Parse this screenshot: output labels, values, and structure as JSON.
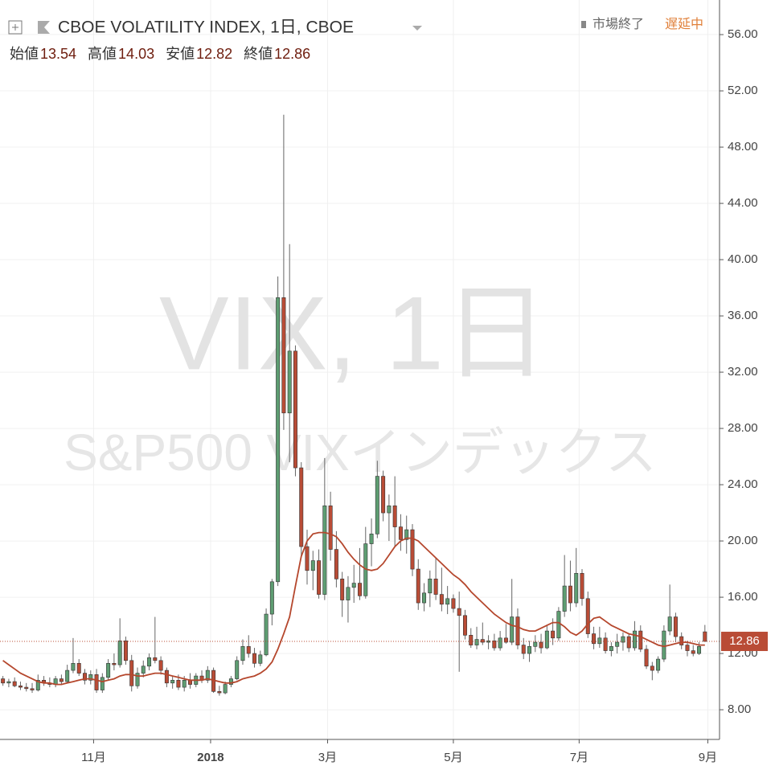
{
  "chart_data": {
    "type": "candlestick",
    "title": "CBOE VOLATILITY INDEX, 1日, CBOE",
    "ohlc": [
      {
        "label": "始値",
        "value": 13.54
      },
      {
        "label": "高値",
        "value": 14.03
      },
      {
        "label": "安値",
        "value": 12.82
      },
      {
        "label": "終値",
        "value": 12.86
      }
    ],
    "status": "市場終了",
    "delay": "遅延中",
    "watermark": [
      "VIX, 1日",
      "S&P500 VIXインデックス"
    ],
    "up_color": "#5e9d72",
    "down_color": "#b94c36",
    "grid": true,
    "xlim": [
      -1,
      245
    ],
    "ylim": [
      5.89,
      58.46
    ],
    "xticks": [
      {
        "value": 31,
        "label": "11月"
      },
      {
        "value": 71,
        "label": "2018"
      },
      {
        "value": 111,
        "label": "3月"
      },
      {
        "value": 154,
        "label": "5月"
      },
      {
        "value": 197,
        "label": "7月"
      },
      {
        "value": 241,
        "label": "9月"
      }
    ],
    "yticks": [
      {
        "value": 8,
        "label": "8.00"
      },
      {
        "value": 12,
        "label": "12.00"
      },
      {
        "value": 16,
        "label": "16.00"
      },
      {
        "value": 20,
        "label": "20.00"
      },
      {
        "value": 24,
        "label": "24.00"
      },
      {
        "value": 28,
        "label": "28.00"
      },
      {
        "value": 32,
        "label": "32.00"
      },
      {
        "value": 36,
        "label": "36.00"
      },
      {
        "value": 40,
        "label": "40.00"
      },
      {
        "value": 44,
        "label": "44.00"
      },
      {
        "value": 48,
        "label": "48.00"
      },
      {
        "value": 52,
        "label": "52.00"
      },
      {
        "value": 56,
        "label": "56.00"
      }
    ],
    "x": [
      0,
      2,
      4,
      6,
      8,
      10,
      12,
      14,
      16,
      18,
      20,
      22,
      24,
      26,
      28,
      30,
      32,
      34,
      36,
      38,
      40,
      42,
      44,
      46,
      48,
      50,
      52,
      54,
      56,
      58,
      60,
      62,
      64,
      66,
      68,
      70,
      72,
      74,
      76,
      78,
      80,
      82,
      84,
      86,
      88,
      90,
      92,
      94,
      96,
      98,
      100,
      102,
      104,
      106,
      108,
      110,
      112,
      114,
      116,
      118,
      120,
      122,
      124,
      126,
      128,
      130,
      132,
      134,
      136,
      138,
      140,
      142,
      144,
      146,
      148,
      150,
      152,
      154,
      156,
      158,
      160,
      162,
      164,
      166,
      168,
      170,
      172,
      174,
      176,
      178,
      180,
      182,
      184,
      186,
      188,
      190,
      192,
      194,
      196,
      198,
      200,
      202,
      204,
      206,
      208,
      210,
      212,
      214,
      216,
      218,
      220,
      222,
      224,
      226,
      228,
      230,
      232,
      234,
      236,
      238,
      240
    ],
    "open": [
      10.2,
      9.9,
      10.0,
      9.7,
      9.6,
      9.5,
      9.4,
      10.1,
      9.9,
      9.8,
      10.2,
      10.0,
      10.8,
      11.3,
      10.6,
      10.1,
      10.5,
      9.4,
      10.3,
      11.3,
      11.2,
      12.9,
      11.5,
      9.7,
      10.6,
      11.1,
      11.7,
      11.5,
      10.8,
      9.9,
      10.1,
      9.6,
      10.1,
      9.8,
      10.4,
      10.1,
      10.8,
      9.3,
      9.2,
      9.8,
      10.2,
      11.5,
      12.5,
      12.0,
      11.3,
      11.9,
      14.8,
      17.1,
      37.3,
      29.1,
      33.5,
      25.2,
      19.6,
      17.9,
      18.6,
      16.2,
      22.5,
      19.4,
      17.3,
      15.8,
      16.7,
      17.0,
      16.1,
      19.8,
      20.5,
      24.6,
      22.0,
      22.5,
      21.0,
      20.1,
      20.8,
      18.0,
      15.6,
      16.3,
      17.3,
      16.2,
      15.5,
      15.9,
      15.2,
      14.7,
      13.3,
      12.6,
      13.0,
      12.8,
      12.9,
      12.4,
      13.1,
      12.8,
      14.6,
      12.6,
      12.0,
      12.5,
      12.8,
      12.4,
      13.6,
      13.1,
      15.0,
      16.8,
      15.6,
      17.7,
      15.9,
      13.4,
      12.7,
      13.1,
      12.2,
      12.5,
      12.8,
      13.2,
      12.4,
      13.6,
      12.3,
      11.1,
      10.8,
      11.6,
      13.6,
      14.6,
      13.2,
      12.6,
      12.2,
      12.0,
      13.54
    ],
    "high": [
      10.4,
      10.2,
      10.3,
      10.0,
      9.9,
      9.9,
      10.5,
      10.4,
      10.3,
      10.4,
      10.5,
      11.2,
      13.1,
      11.6,
      10.9,
      10.8,
      10.9,
      10.6,
      11.6,
      12.0,
      14.5,
      13.2,
      11.9,
      11.0,
      11.5,
      12.0,
      14.6,
      11.8,
      11.0,
      10.4,
      10.5,
      10.4,
      10.6,
      10.6,
      10.8,
      11.1,
      11.0,
      9.7,
      10.0,
      10.4,
      11.8,
      13.0,
      13.3,
      12.4,
      12.2,
      15.2,
      17.3,
      38.8,
      50.3,
      41.1,
      33.9,
      25.6,
      20.8,
      19.3,
      19.4,
      25.9,
      23.5,
      20.7,
      17.8,
      17.5,
      18.3,
      19.5,
      21.0,
      21.6,
      25.7,
      25.0,
      23.3,
      24.6,
      21.9,
      21.8,
      21.2,
      18.7,
      17.0,
      17.9,
      18.8,
      18.1,
      16.8,
      16.2,
      16.4,
      15.1,
      13.8,
      13.9,
      14.2,
      13.3,
      13.4,
      13.6,
      14.1,
      17.3,
      15.2,
      13.1,
      12.9,
      13.3,
      13.4,
      14.0,
      14.5,
      15.3,
      19.0,
      18.6,
      19.5,
      18.0,
      16.4,
      13.9,
      13.9,
      13.5,
      12.8,
      13.4,
      13.5,
      13.4,
      14.3,
      14.0,
      12.6,
      11.4,
      11.8,
      14.0,
      16.9,
      14.9,
      13.5,
      12.9,
      12.6,
      12.8,
      14.03
    ],
    "low": [
      9.7,
      9.6,
      9.6,
      9.4,
      9.3,
      9.2,
      9.3,
      9.7,
      9.6,
      9.6,
      9.8,
      9.9,
      10.6,
      10.4,
      9.8,
      9.8,
      9.2,
      9.2,
      10.1,
      10.8,
      11.0,
      11.2,
      9.3,
      9.5,
      10.3,
      10.8,
      11.3,
      10.5,
      9.6,
      9.5,
      9.4,
      9.3,
      9.5,
      9.6,
      9.9,
      9.9,
      9.2,
      9.0,
      9.1,
      9.6,
      10.1,
      11.2,
      11.7,
      11.0,
      11.1,
      11.8,
      14.0,
      16.8,
      27.9,
      25.6,
      24.6,
      18.8,
      16.9,
      16.5,
      15.9,
      15.8,
      18.6,
      16.7,
      14.6,
      14.2,
      15.6,
      15.8,
      15.9,
      18.2,
      20.2,
      21.4,
      20.0,
      19.6,
      19.3,
      19.1,
      17.5,
      15.1,
      15.0,
      15.3,
      15.8,
      15.0,
      14.8,
      14.9,
      10.7,
      13.0,
      12.4,
      12.3,
      12.6,
      12.3,
      12.2,
      12.2,
      12.7,
      12.6,
      12.3,
      11.6,
      11.4,
      12.1,
      12.0,
      12.3,
      12.6,
      12.9,
      14.6,
      15.0,
      15.3,
      15.4,
      13.1,
      12.3,
      12.4,
      12.0,
      11.8,
      12.0,
      12.2,
      12.1,
      12.2,
      12.1,
      10.9,
      10.1,
      10.6,
      11.4,
      13.3,
      12.8,
      12.3,
      11.8,
      11.8,
      11.9,
      12.82
    ],
    "close": [
      9.9,
      10.0,
      9.7,
      9.6,
      9.5,
      9.4,
      10.1,
      9.9,
      9.8,
      10.2,
      10.0,
      10.8,
      11.3,
      10.6,
      10.1,
      10.5,
      9.4,
      10.3,
      11.3,
      11.2,
      12.9,
      11.5,
      9.7,
      10.6,
      11.1,
      11.7,
      11.5,
      10.8,
      9.9,
      10.1,
      9.6,
      10.1,
      9.8,
      10.4,
      10.1,
      10.8,
      9.3,
      9.2,
      9.8,
      10.2,
      11.5,
      12.5,
      12.0,
      11.3,
      11.9,
      14.8,
      17.1,
      37.3,
      29.1,
      33.5,
      25.2,
      19.6,
      17.9,
      18.6,
      16.2,
      22.5,
      19.4,
      17.3,
      15.8,
      16.7,
      17.0,
      16.1,
      19.8,
      20.5,
      24.6,
      22.0,
      22.5,
      21.0,
      20.1,
      20.8,
      18.0,
      15.6,
      16.3,
      17.3,
      16.2,
      15.5,
      15.9,
      15.2,
      14.7,
      13.3,
      12.6,
      13.0,
      12.8,
      12.9,
      12.4,
      13.1,
      12.8,
      14.6,
      12.6,
      12.0,
      12.5,
      12.8,
      12.4,
      13.6,
      13.1,
      15.0,
      16.8,
      15.6,
      17.7,
      15.9,
      13.4,
      12.7,
      13.1,
      12.2,
      12.5,
      12.8,
      13.2,
      12.4,
      13.6,
      12.3,
      11.1,
      10.8,
      11.6,
      13.6,
      14.6,
      13.2,
      12.6,
      12.2,
      12.0,
      12.5,
      12.86
    ],
    "moving_average": {
      "color": "#b5472d",
      "values": [
        11.5,
        11.2,
        10.9,
        10.6,
        10.4,
        10.2,
        10.0,
        9.9,
        9.9,
        9.8,
        9.8,
        9.9,
        10.0,
        10.1,
        10.2,
        10.2,
        10.1,
        10.0,
        10.1,
        10.2,
        10.4,
        10.5,
        10.5,
        10.4,
        10.4,
        10.5,
        10.6,
        10.6,
        10.5,
        10.4,
        10.3,
        10.2,
        10.1,
        10.1,
        10.1,
        10.2,
        10.1,
        10.0,
        9.9,
        9.9,
        10.0,
        10.2,
        10.3,
        10.4,
        10.6,
        10.9,
        11.4,
        12.3,
        13.4,
        14.6,
        16.8,
        18.9,
        20.0,
        20.5,
        20.6,
        20.6,
        20.5,
        20.3,
        19.8,
        19.2,
        18.7,
        18.3,
        18.0,
        17.9,
        18.0,
        18.4,
        19.0,
        19.6,
        20.0,
        20.2,
        20.2,
        20.0,
        19.6,
        19.2,
        18.8,
        18.4,
        18.0,
        17.6,
        17.3,
        16.9,
        16.4,
        16.0,
        15.6,
        15.2,
        14.8,
        14.5,
        14.2,
        14.0,
        13.9,
        13.7,
        13.6,
        13.6,
        13.8,
        14.0,
        14.2,
        14.2,
        13.9,
        13.5,
        13.3,
        13.6,
        14.1,
        14.5,
        14.6,
        14.3,
        14.0,
        13.8,
        13.6,
        13.4,
        13.3,
        13.2,
        13.0,
        12.8,
        12.6,
        12.5,
        12.6,
        12.7,
        12.8,
        12.8,
        12.7,
        12.6,
        12.6
      ]
    }
  }
}
